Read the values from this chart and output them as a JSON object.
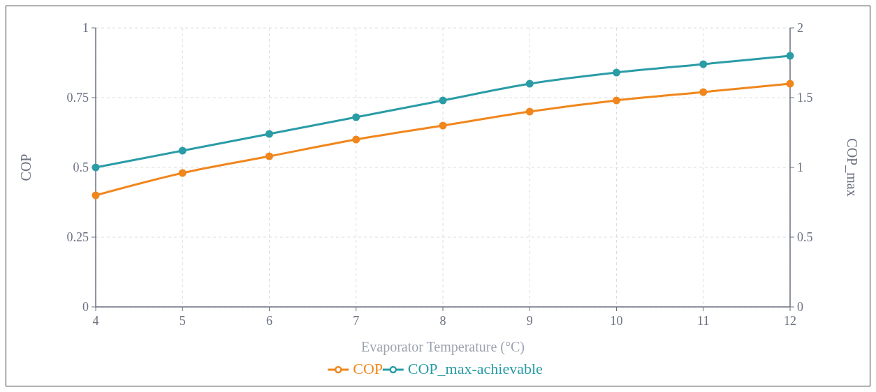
{
  "chart_data": {
    "type": "line",
    "xlabel": "Evaporator Temperature (°C)",
    "ylabel": "COP",
    "y2label": "COP_max",
    "x": [
      4,
      5,
      6,
      7,
      8,
      9,
      10,
      11,
      12
    ],
    "series": [
      {
        "name": "COP",
        "color": "#f0861c",
        "values": [
          0.4,
          0.48,
          0.54,
          0.6,
          0.65,
          0.7,
          0.74,
          0.77,
          0.8
        ]
      },
      {
        "name": "COP_max-achievable",
        "color": "#2a9ca6",
        "axis": "y2",
        "values": [
          1,
          1.12,
          1.24,
          1.36,
          1.48,
          1.6,
          1.68,
          1.74,
          1.8
        ]
      }
    ],
    "xlim": [
      4,
      12
    ],
    "xticks": [
      4,
      5,
      6,
      7,
      8,
      9,
      10,
      11,
      12
    ],
    "ylim": [
      0,
      1
    ],
    "yticks": [
      0,
      0.25,
      0.5,
      0.75,
      1
    ],
    "y2lim": [
      0,
      2
    ],
    "y2ticks": [
      0,
      0.5,
      1,
      1.5,
      2
    ],
    "grid": true,
    "legend": "bottom",
    "marker": "circle",
    "line_style": "solid"
  }
}
